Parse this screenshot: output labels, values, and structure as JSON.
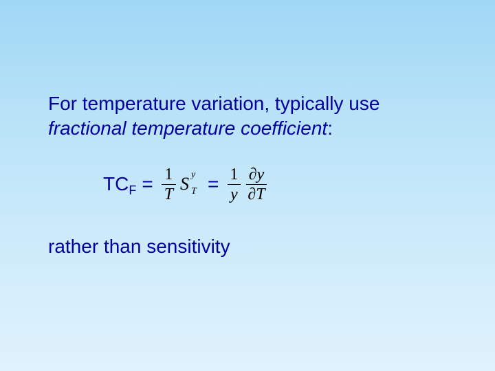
{
  "background": {
    "gradient_top": "#9fd7f5",
    "gradient_bottom": "#e0f2fd"
  },
  "text": {
    "line1": "For temperature variation, typically use",
    "line2a": "fractional temperature coefficient",
    "line2b": ":",
    "tcf_label": "TC",
    "tcf_sub": "F",
    "equals": " = ",
    "rather": "rather than sensitivity"
  },
  "math": {
    "frac1_num": "1",
    "frac1_den": "T",
    "S": "S",
    "S_sup": "y",
    "S_sub": "T",
    "frac2_num": "1",
    "frac2_den": "y",
    "partial": "∂",
    "dy_num_var": "y",
    "dT_den_var": "T"
  },
  "style": {
    "text_color": "#0000a0",
    "math_color": "#000000",
    "body_fontsize": 28,
    "math_fontsize": 24,
    "sub_fontsize": 18,
    "supscript_fontsize": 14
  }
}
